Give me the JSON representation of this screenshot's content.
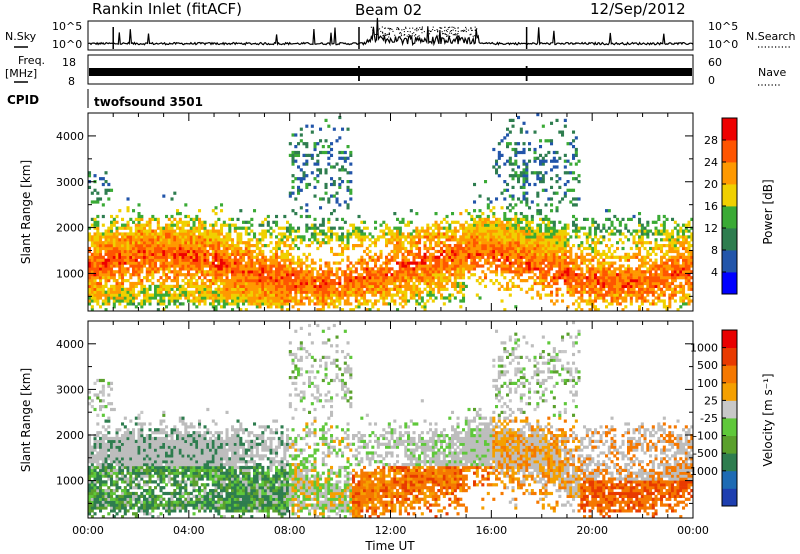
{
  "header": {
    "station": "Rankin Inlet (fitACF)",
    "beam": "Beam 02",
    "date": "12/Sep/2012"
  },
  "strip_nsky": {
    "left_label": "N.Sky",
    "right_label": "N.Search",
    "left_ticks": [
      "10^5",
      "10^0"
    ],
    "right_ticks": [
      "10^5",
      "10^0"
    ]
  },
  "strip_freq": {
    "left_label_1": "Freq.",
    "left_label_2": "[MHz]",
    "right_label": "Nave",
    "left_ticks": [
      "18",
      "8"
    ],
    "right_ticks": [
      "60",
      "0"
    ]
  },
  "cpid": {
    "label": "CPID",
    "value": "twofsound 3501"
  },
  "colors": {
    "power": [
      "#0000ff",
      "#2255aa",
      "#2e7d4f",
      "#3aaa35",
      "#f0d000",
      "#ff9900",
      "#ff5500",
      "#ee0000"
    ],
    "velocity": [
      "#1e3fb0",
      "#1e6bb4",
      "#2e7d4f",
      "#5aa02c",
      "#5fc83a",
      "#c8c8c8",
      "#f5a000",
      "#f57800",
      "#e83a00",
      "#e80000"
    ],
    "ground_scatter": "#bdbdbd"
  },
  "chart_data": [
    {
      "type": "heatmap",
      "panel": "power",
      "ylabel": "Slant Range [km]",
      "ylim": [
        180,
        4500
      ],
      "yticks": [
        "1000",
        "2000",
        "3000",
        "4000"
      ],
      "xlim": [
        "00:00",
        "24:00"
      ],
      "colorbar_label": "Power [dB]",
      "colorbar_ticks": [
        "4",
        "8",
        "12",
        "16",
        "20",
        "24",
        "28"
      ],
      "colorbar_range": [
        0,
        32
      ]
    },
    {
      "type": "heatmap",
      "panel": "velocity",
      "ylabel": "Slant Range [km]",
      "ylim": [
        180,
        4500
      ],
      "yticks": [
        "1000",
        "2000",
        "3000",
        "4000"
      ],
      "xlim": [
        "00:00",
        "24:00"
      ],
      "xlabel": "Time UT",
      "xticks": [
        "00:00",
        "04:00",
        "08:00",
        "12:00",
        "16:00",
        "20:00",
        "00:00"
      ],
      "colorbar_label": "Velocity [m s⁻¹]",
      "colorbar_ticks": [
        "1000",
        "500",
        "100",
        "25",
        "-25",
        "-100",
        "-500",
        "-1000"
      ]
    }
  ]
}
